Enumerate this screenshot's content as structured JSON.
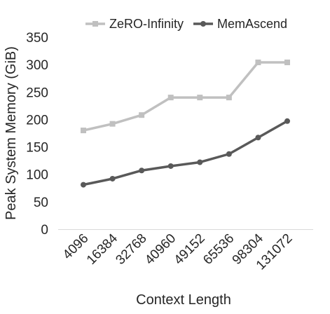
{
  "chart_data": {
    "type": "line",
    "title": "",
    "xlabel": "Context Length",
    "ylabel": "Peak System Memory (GiB)",
    "categories": [
      "4096",
      "16384",
      "32768",
      "40960",
      "49152",
      "65536",
      "98304",
      "131072"
    ],
    "ylim": [
      0,
      350
    ],
    "yticks": [
      "0",
      "50",
      "100",
      "150",
      "200",
      "250",
      "300",
      "350"
    ],
    "grid": false,
    "legend_position": "top",
    "series": [
      {
        "name": "ZeRO-Infinity",
        "color": "#c0c0c0",
        "marker": "square",
        "values": [
          180,
          192,
          208,
          240,
          240,
          240,
          304,
          304
        ]
      },
      {
        "name": "MemAscend",
        "color": "#595959",
        "marker": "circle",
        "values": [
          81,
          92,
          107,
          115,
          122,
          137,
          167,
          197
        ]
      }
    ]
  }
}
